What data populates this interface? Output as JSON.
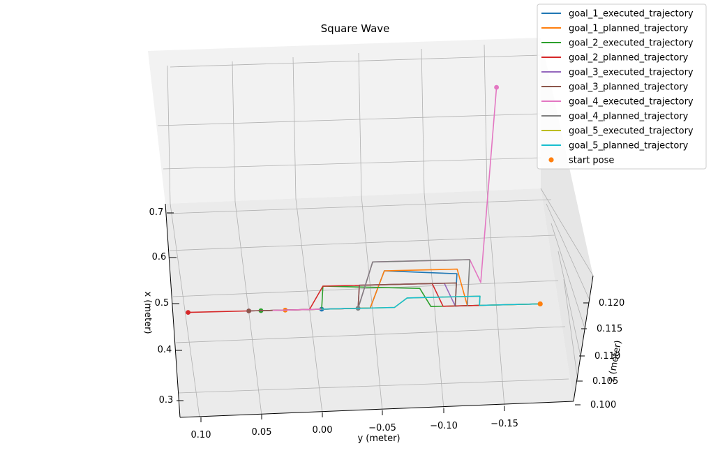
{
  "chart_data": {
    "type": "line3d",
    "title": "Square Wave",
    "xlabel": "x (meter)",
    "ylabel": "y (meter)",
    "zlabel": "z (meter)",
    "x_ticks": [
      "0.3",
      "0.4",
      "0.5",
      "0.6",
      "0.7"
    ],
    "y_ticks": [
      "0.10",
      "0.05",
      "0.00",
      "−0.05",
      "−0.10",
      "−0.15"
    ],
    "z_ticks": [
      "0.100",
      "0.105",
      "0.110",
      "0.115",
      "0.120"
    ],
    "grid": true,
    "legend_position": "top-right",
    "colors": {
      "goal_1_executed_trajectory": "#1f77b4",
      "goal_1_planned_trajectory": "#ff7f0e",
      "goal_2_executed_trajectory": "#2ca02c",
      "goal_2_planned_trajectory": "#d62728",
      "goal_3_executed_trajectory": "#9467bd",
      "goal_3_planned_trajectory": "#8c564b",
      "goal_4_executed_trajectory": "#e377c2",
      "goal_4_planned_trajectory": "#7f7f7f",
      "goal_5_executed_trajectory": "#bcbd22",
      "goal_5_planned_trajectory": "#17becf",
      "start_pose": "#ff7f0e"
    },
    "legend": [
      "goal_1_executed_trajectory",
      "goal_1_planned_trajectory",
      "goal_2_executed_trajectory",
      "goal_2_planned_trajectory",
      "goal_3_executed_trajectory",
      "goal_3_planned_trajectory",
      "goal_4_executed_trajectory",
      "goal_4_planned_trajectory",
      "goal_5_executed_trajectory",
      "goal_5_planned_trajectory",
      "start pose"
    ],
    "start_pose": {
      "x": 0.5,
      "y": -0.18,
      "z": 0.1
    },
    "series": [
      {
        "name": "goal_1_executed_trajectory",
        "points": [
          [
            0.5,
            -0.18,
            0.1
          ],
          [
            0.5,
            -0.13,
            0.1
          ],
          [
            0.5,
            -0.12,
            0.1
          ],
          [
            0.5,
            -0.11,
            0.1
          ],
          [
            0.57,
            -0.11,
            0.1
          ],
          [
            0.58,
            -0.05,
            0.1
          ],
          [
            0.5,
            -0.04,
            0.1
          ],
          [
            0.5,
            0.0,
            0.1
          ]
        ]
      },
      {
        "name": "goal_1_planned_trajectory",
        "points": [
          [
            0.5,
            -0.18,
            0.1
          ],
          [
            0.5,
            -0.12,
            0.1
          ],
          [
            0.58,
            -0.11,
            0.1
          ],
          [
            0.58,
            -0.05,
            0.1
          ],
          [
            0.5,
            -0.04,
            0.1
          ],
          [
            0.5,
            0.03,
            0.1
          ]
        ]
      },
      {
        "name": "goal_2_executed_trajectory",
        "points": [
          [
            0.5,
            -0.13,
            0.1
          ],
          [
            0.5,
            -0.09,
            0.1
          ],
          [
            0.54,
            -0.08,
            0.1
          ],
          [
            0.55,
            0.0,
            0.1
          ],
          [
            0.5,
            0.0,
            0.1
          ],
          [
            0.5,
            0.05,
            0.1
          ]
        ]
      },
      {
        "name": "goal_2_planned_trajectory",
        "points": [
          [
            0.5,
            -0.13,
            0.1
          ],
          [
            0.5,
            -0.1,
            0.1
          ],
          [
            0.55,
            -0.09,
            0.1
          ],
          [
            0.55,
            0.0,
            0.1
          ],
          [
            0.5,
            0.01,
            0.1
          ],
          [
            0.5,
            0.11,
            0.1
          ]
        ]
      },
      {
        "name": "goal_3_executed_trajectory",
        "points": [
          [
            0.5,
            -0.11,
            0.1
          ],
          [
            0.55,
            -0.1,
            0.1
          ],
          [
            0.55,
            -0.03,
            0.1
          ],
          [
            0.5,
            -0.03,
            0.1
          ],
          [
            0.5,
            0.06,
            0.1
          ]
        ]
      },
      {
        "name": "goal_3_planned_trajectory",
        "points": [
          [
            0.5,
            -0.11,
            0.1
          ],
          [
            0.55,
            -0.11,
            0.1
          ],
          [
            0.55,
            -0.03,
            0.1
          ],
          [
            0.5,
            -0.03,
            0.1
          ],
          [
            0.5,
            0.06,
            0.1
          ]
        ]
      },
      {
        "name": "goal_4_executed_trajectory",
        "points": [
          [
            0.5,
            0.04,
            0.1
          ],
          [
            0.5,
            -0.03,
            0.1
          ],
          [
            0.6,
            -0.04,
            0.1
          ],
          [
            0.6,
            -0.12,
            0.1
          ],
          [
            0.55,
            -0.13,
            0.1
          ],
          [
            0.7,
            -0.14,
            0.12
          ]
        ]
      },
      {
        "name": "goal_4_planned_trajectory",
        "points": [
          [
            0.5,
            -0.12,
            0.1
          ],
          [
            0.6,
            -0.12,
            0.1
          ],
          [
            0.6,
            -0.04,
            0.1
          ],
          [
            0.5,
            -0.03,
            0.1
          ]
        ]
      },
      {
        "name": "goal_5_executed_trajectory",
        "points": [
          [
            0.5,
            0.0,
            0.1
          ],
          [
            0.5,
            -0.06,
            0.1
          ],
          [
            0.52,
            -0.07,
            0.1
          ],
          [
            0.52,
            -0.13,
            0.1
          ],
          [
            0.5,
            -0.13,
            0.1
          ],
          [
            0.5,
            -0.18,
            0.1
          ]
        ]
      },
      {
        "name": "goal_5_planned_trajectory",
        "points": [
          [
            0.5,
            0.0,
            0.1
          ],
          [
            0.5,
            -0.06,
            0.1
          ],
          [
            0.52,
            -0.07,
            0.1
          ],
          [
            0.52,
            -0.13,
            0.1
          ],
          [
            0.5,
            -0.13,
            0.1
          ],
          [
            0.5,
            -0.18,
            0.1
          ]
        ]
      }
    ]
  }
}
